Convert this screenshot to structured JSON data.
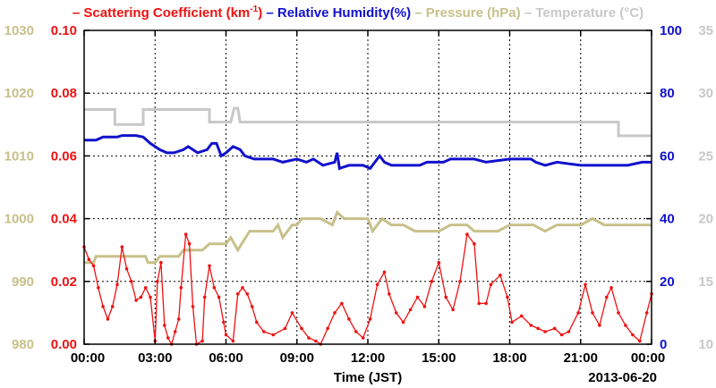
{
  "chart_data": {
    "type": "line",
    "title": "",
    "xlabel": "Time (JST)",
    "date_label": "2013-06-20",
    "x_ticks": [
      "00:00",
      "03:00",
      "06:00",
      "09:00",
      "12:00",
      "15:00",
      "18:00",
      "21:00",
      "00:00"
    ],
    "xlim_hours": [
      0,
      24
    ],
    "legend": [
      {
        "dash": "–",
        "text": "Scattering Coefficient (km",
        "sup": "-1",
        "suffix": ")",
        "color": "#ee1111"
      },
      {
        "dash": "–",
        "text": "Relative Humidity(%)",
        "color": "#1111cc"
      },
      {
        "dash": "–",
        "text": "Pressure (hPa)",
        "color": "#c8c08a"
      },
      {
        "dash": "–",
        "text": "Temperature (",
        "deg": "°",
        "suffix": "C)",
        "color": "#c8c8c8"
      }
    ],
    "axes": {
      "scattering": {
        "side": "left-inner",
        "color": "#ee1111",
        "range": [
          0,
          0.1
        ],
        "ticks": [
          "0.00",
          "0.02",
          "0.04",
          "0.06",
          "0.08",
          "0.10"
        ]
      },
      "pressure": {
        "side": "left-outer",
        "color": "#c8c08a",
        "range": [
          980,
          1030
        ],
        "ticks": [
          "980",
          "990",
          "1000",
          "1010",
          "1020",
          "1030"
        ]
      },
      "humidity": {
        "side": "right-inner",
        "color": "#1111cc",
        "range": [
          0,
          100
        ],
        "ticks": [
          "0",
          "20",
          "40",
          "60",
          "80",
          "100"
        ]
      },
      "temperature": {
        "side": "right-outer",
        "color": "#c8c8c8",
        "range": [
          10,
          35
        ],
        "ticks": [
          "10",
          "15",
          "20",
          "25",
          "30",
          "35"
        ]
      }
    },
    "grid": true,
    "series": [
      {
        "name": "Temperature",
        "axis": "temperature",
        "color": "#c8c8c8",
        "points": [
          [
            0,
            28.7
          ],
          [
            1.3,
            28.7
          ],
          [
            1.3,
            27.5
          ],
          [
            2.5,
            27.5
          ],
          [
            2.5,
            28.7
          ],
          [
            5.3,
            28.7
          ],
          [
            5.3,
            27.7
          ],
          [
            6.2,
            27.7
          ],
          [
            6.35,
            28.8
          ],
          [
            6.5,
            28.8
          ],
          [
            6.6,
            27.7
          ],
          [
            22.6,
            27.7
          ],
          [
            22.6,
            26.6
          ],
          [
            24,
            26.6
          ]
        ]
      },
      {
        "name": "Relative Humidity",
        "axis": "humidity",
        "color": "#1111cc",
        "points": [
          [
            0,
            65
          ],
          [
            0.5,
            65
          ],
          [
            0.8,
            66
          ],
          [
            1.4,
            66
          ],
          [
            1.6,
            66.5
          ],
          [
            2.2,
            66.5
          ],
          [
            2.5,
            66
          ],
          [
            2.8,
            64
          ],
          [
            3.2,
            62
          ],
          [
            3.5,
            61
          ],
          [
            3.8,
            61
          ],
          [
            4.2,
            62
          ],
          [
            4.4,
            63
          ],
          [
            4.6,
            62
          ],
          [
            4.8,
            61
          ],
          [
            5.2,
            62
          ],
          [
            5.4,
            64
          ],
          [
            5.6,
            64
          ],
          [
            5.8,
            60
          ],
          [
            6.0,
            61
          ],
          [
            6.3,
            63
          ],
          [
            6.6,
            62
          ],
          [
            6.8,
            60
          ],
          [
            7.2,
            59
          ],
          [
            8.0,
            59
          ],
          [
            8.4,
            58
          ],
          [
            9.0,
            59
          ],
          [
            9.4,
            58
          ],
          [
            9.7,
            59
          ],
          [
            10.1,
            57
          ],
          [
            10.6,
            58
          ],
          [
            10.7,
            61
          ],
          [
            10.8,
            56
          ],
          [
            11.2,
            57
          ],
          [
            11.8,
            57
          ],
          [
            12.1,
            56
          ],
          [
            12.3,
            58
          ],
          [
            12.5,
            60
          ],
          [
            12.7,
            58
          ],
          [
            13.0,
            57
          ],
          [
            13.5,
            57
          ],
          [
            14.2,
            57
          ],
          [
            14.5,
            58
          ],
          [
            15.2,
            58
          ],
          [
            15.5,
            59
          ],
          [
            16.5,
            59
          ],
          [
            17.0,
            58
          ],
          [
            18.0,
            59
          ],
          [
            18.9,
            59
          ],
          [
            19.1,
            58
          ],
          [
            19.5,
            57
          ],
          [
            20.0,
            58
          ],
          [
            21.0,
            57
          ],
          [
            22.0,
            57
          ],
          [
            23.0,
            57
          ],
          [
            23.6,
            58
          ],
          [
            24,
            58
          ]
        ]
      },
      {
        "name": "Pressure",
        "axis": "pressure",
        "color": "#c8c08a",
        "points": [
          [
            0,
            993
          ],
          [
            0.4,
            993
          ],
          [
            0.5,
            994
          ],
          [
            2.6,
            994
          ],
          [
            2.7,
            993
          ],
          [
            3.0,
            993
          ],
          [
            3.2,
            994
          ],
          [
            4.0,
            994
          ],
          [
            4.2,
            995
          ],
          [
            5.0,
            995
          ],
          [
            5.3,
            996
          ],
          [
            6.0,
            996
          ],
          [
            6.2,
            997
          ],
          [
            6.5,
            995
          ],
          [
            7.0,
            998
          ],
          [
            8.0,
            998
          ],
          [
            8.2,
            999
          ],
          [
            8.4,
            997
          ],
          [
            8.8,
            999
          ],
          [
            9.0,
            999
          ],
          [
            9.2,
            1000
          ],
          [
            10.0,
            1000
          ],
          [
            10.5,
            999
          ],
          [
            10.7,
            1001
          ],
          [
            11.0,
            1000
          ],
          [
            12.0,
            1000
          ],
          [
            12.2,
            998
          ],
          [
            12.6,
            1000
          ],
          [
            13.0,
            999
          ],
          [
            13.5,
            999
          ],
          [
            14.0,
            998
          ],
          [
            15.0,
            998
          ],
          [
            15.5,
            999
          ],
          [
            16.2,
            999
          ],
          [
            16.5,
            998
          ],
          [
            17.5,
            998
          ],
          [
            18.0,
            999
          ],
          [
            19.0,
            999
          ],
          [
            19.5,
            998
          ],
          [
            20.0,
            999
          ],
          [
            21.0,
            999
          ],
          [
            21.5,
            1000
          ],
          [
            22.0,
            999
          ],
          [
            22.5,
            999
          ],
          [
            23.0,
            999
          ],
          [
            24,
            999
          ]
        ]
      },
      {
        "name": "Scattering Coefficient",
        "axis": "scattering",
        "color": "#ee1111",
        "points": [
          [
            0,
            0.031
          ],
          [
            0.2,
            0.027
          ],
          [
            0.4,
            0.025
          ],
          [
            0.6,
            0.018
          ],
          [
            0.8,
            0.012
          ],
          [
            1.0,
            0.008
          ],
          [
            1.2,
            0.012
          ],
          [
            1.4,
            0.019
          ],
          [
            1.6,
            0.031
          ],
          [
            1.8,
            0.024
          ],
          [
            2.0,
            0.02
          ],
          [
            2.2,
            0.014
          ],
          [
            2.4,
            0.015
          ],
          [
            2.6,
            0.018
          ],
          [
            2.8,
            0.015
          ],
          [
            3.0,
            0.001
          ],
          [
            3.1,
            0.02
          ],
          [
            3.25,
            0.026
          ],
          [
            3.4,
            0.006
          ],
          [
            3.55,
            0.002
          ],
          [
            3.7,
            0.0
          ],
          [
            3.85,
            0.004
          ],
          [
            4.0,
            0.008
          ],
          [
            4.1,
            0.018
          ],
          [
            4.3,
            0.035
          ],
          [
            4.45,
            0.032
          ],
          [
            4.6,
            0.012
          ],
          [
            4.75,
            0.0
          ],
          [
            5.0,
            0.001
          ],
          [
            5.1,
            0.015
          ],
          [
            5.3,
            0.025
          ],
          [
            5.5,
            0.018
          ],
          [
            5.7,
            0.015
          ],
          [
            5.9,
            0.007
          ],
          [
            6.0,
            0.003
          ],
          [
            6.3,
            0.001
          ],
          [
            6.5,
            0.016
          ],
          [
            6.7,
            0.018
          ],
          [
            6.9,
            0.016
          ],
          [
            7.1,
            0.012
          ],
          [
            7.3,
            0.007
          ],
          [
            7.6,
            0.004
          ],
          [
            8.0,
            0.003
          ],
          [
            8.5,
            0.005
          ],
          [
            8.8,
            0.01
          ],
          [
            9.2,
            0.005
          ],
          [
            9.5,
            0.002
          ],
          [
            9.8,
            0.001
          ],
          [
            10.0,
            0.0
          ],
          [
            10.3,
            0.005
          ],
          [
            10.6,
            0.01
          ],
          [
            10.9,
            0.013
          ],
          [
            11.2,
            0.008
          ],
          [
            11.5,
            0.004
          ],
          [
            11.8,
            0.002
          ],
          [
            12.1,
            0.008
          ],
          [
            12.4,
            0.019
          ],
          [
            12.7,
            0.023
          ],
          [
            12.9,
            0.016
          ],
          [
            13.2,
            0.01
          ],
          [
            13.5,
            0.007
          ],
          [
            13.8,
            0.011
          ],
          [
            14.1,
            0.015
          ],
          [
            14.4,
            0.012
          ],
          [
            14.7,
            0.02
          ],
          [
            15.0,
            0.026
          ],
          [
            15.3,
            0.015
          ],
          [
            15.6,
            0.011
          ],
          [
            15.9,
            0.02
          ],
          [
            16.2,
            0.035
          ],
          [
            16.5,
            0.032
          ],
          [
            16.7,
            0.013
          ],
          [
            17.0,
            0.013
          ],
          [
            17.2,
            0.019
          ],
          [
            17.6,
            0.022
          ],
          [
            17.9,
            0.015
          ],
          [
            18.1,
            0.007
          ],
          [
            18.5,
            0.009
          ],
          [
            18.9,
            0.006
          ],
          [
            19.2,
            0.005
          ],
          [
            19.5,
            0.004
          ],
          [
            19.9,
            0.005
          ],
          [
            20.2,
            0.003
          ],
          [
            20.5,
            0.004
          ],
          [
            20.9,
            0.01
          ],
          [
            21.2,
            0.019
          ],
          [
            21.5,
            0.01
          ],
          [
            21.8,
            0.006
          ],
          [
            22.1,
            0.015
          ],
          [
            22.3,
            0.018
          ],
          [
            22.6,
            0.01
          ],
          [
            22.9,
            0.006
          ],
          [
            23.2,
            0.003
          ],
          [
            23.5,
            0.001
          ],
          [
            23.8,
            0.01
          ],
          [
            24,
            0.016
          ]
        ]
      }
    ]
  }
}
